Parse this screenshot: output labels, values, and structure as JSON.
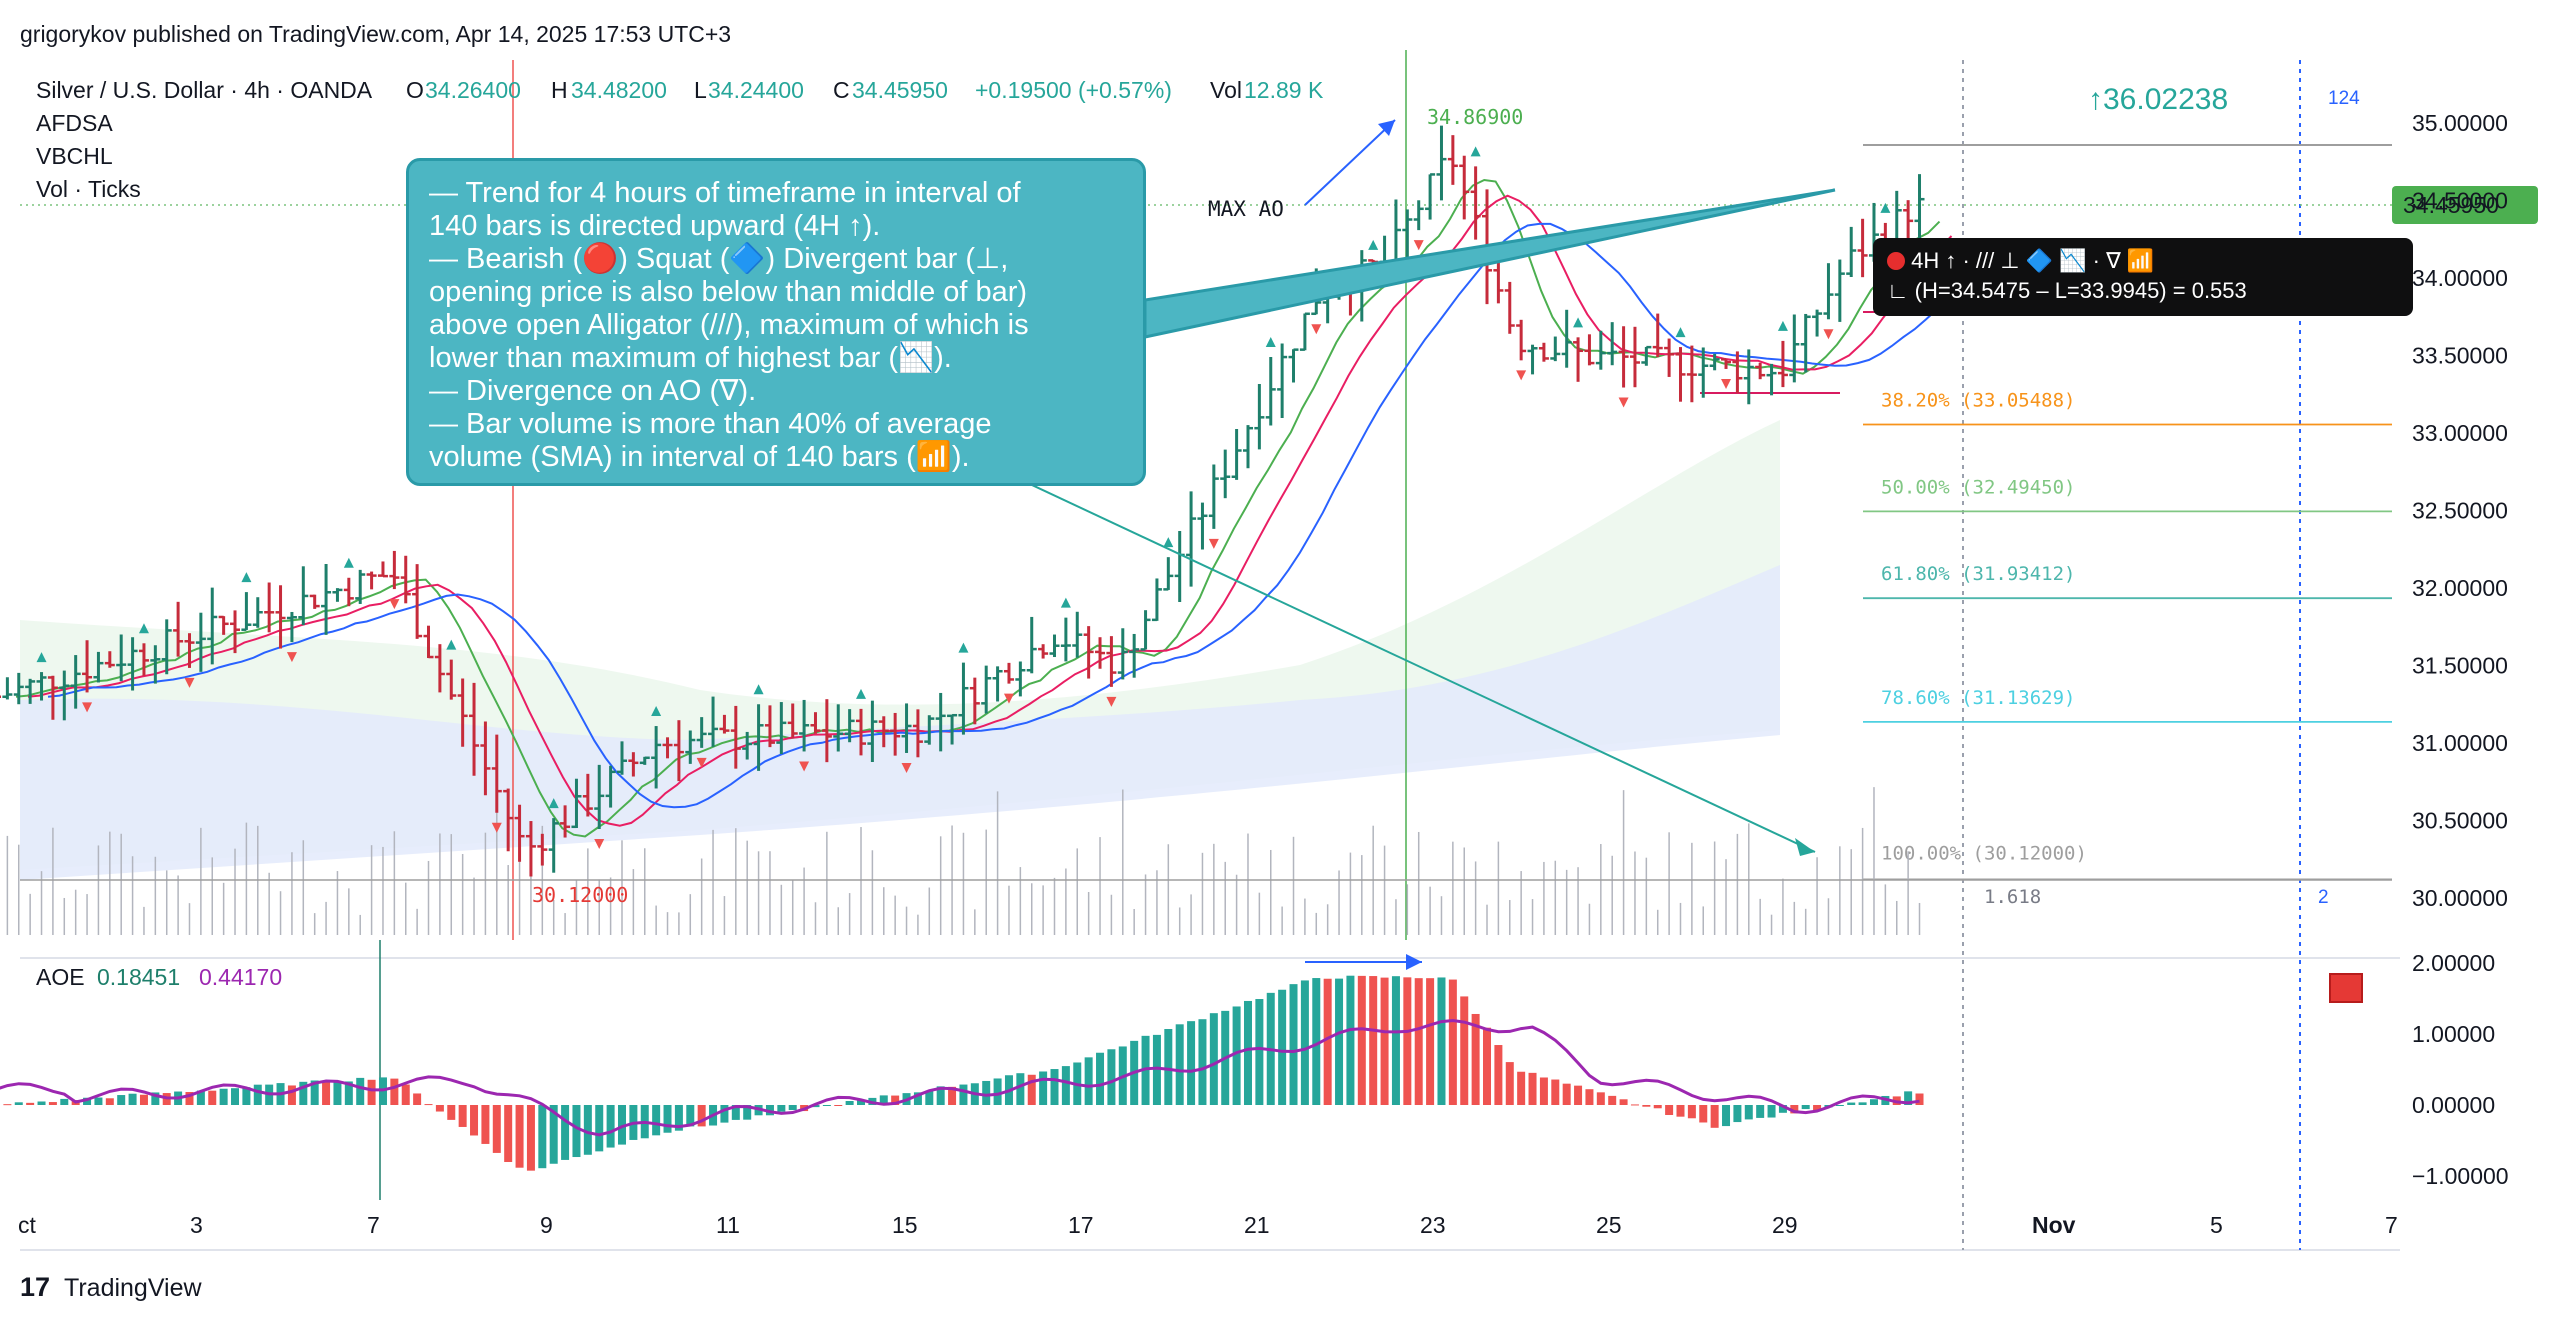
{
  "header": {
    "publisher": "grigorykov published on TradingView.com, Apr 14, 2025 17:53 UTC+3"
  },
  "legend": {
    "symbol": "Silver / U.S. Dollar · 4h · OANDA",
    "o_label": "O",
    "o_value": "34.26400",
    "h_label": "H",
    "h_value": "34.48200",
    "l_label": "L",
    "l_value": "34.24400",
    "c_label": "C",
    "c_value": "34.45950",
    "change": "+0.19500 (+0.57%)",
    "vol_label": "Vol",
    "vol_value": "12.89 K",
    "indicators": [
      "AFDSA",
      "VBCHL",
      "Vol · Ticks"
    ]
  },
  "callout": {
    "lines": [
      "— Trend for 4 hours of timeframe in interval of",
      "140 bars is directed upward (4H ↑).",
      "— Bearish (🔴) Squat (🔷) Divergent bar (⊥,",
      "opening price is also below than middle of bar)",
      "above open Alligator (///), maximum of which is",
      "lower than maximum of highest bar (📉).",
      "— Divergence on AO (∇).",
      "— Bar volume is more than 40% of average",
      "volume (SMA) in interval of 140 bars (📶)."
    ]
  },
  "tooltip": {
    "line1": "4H ↑ · /// ⊥ 🔷 📉 · ∇ 📶",
    "line2": "∟ (H=34.5475 – L=33.9945) = 0.553"
  },
  "annotations": {
    "max_ao": "MAX AO",
    "high_label": "34.86900",
    "low_label": "30.12000",
    "target": "↑36.02238",
    "bars_count": "124",
    "fib_ratio": "1.618",
    "bars_small": "2"
  },
  "fib_levels": [
    {
      "label": "38.20% (33.05488)",
      "value": 33.05488,
      "color": "#f7931a"
    },
    {
      "label": "50.00% (32.49450)",
      "value": 32.4945,
      "color": "#81c784"
    },
    {
      "label": "61.80% (31.93412)",
      "value": 31.93412,
      "color": "#4db6ac"
    },
    {
      "label": "78.60% (31.13629)",
      "value": 31.13629,
      "color": "#4dd0e1"
    },
    {
      "label": "100.00% (30.12000)",
      "value": 30.12,
      "color": "#9e9e9e"
    }
  ],
  "price_axis": {
    "ticks": [
      "35.00000",
      "34.50000",
      "34.00000",
      "33.50000",
      "33.00000",
      "32.50000",
      "32.00000",
      "31.50000",
      "31.00000",
      "30.50000",
      "30.00000"
    ],
    "current_price": "34.45950"
  },
  "oscillator": {
    "name": "AOE",
    "value1": "0.18451",
    "value2": "0.44170",
    "ticks": [
      "2.00000",
      "1.00000",
      "0.00000",
      "−1.00000"
    ]
  },
  "time_axis": [
    "ct",
    "3",
    "7",
    "9",
    "11",
    "15",
    "17",
    "21",
    "23",
    "25",
    "29",
    "Nov",
    "5",
    "7"
  ],
  "footer": {
    "brand": "TradingView"
  },
  "colors": {
    "up": "#1e7f6b",
    "down": "#c62b3b",
    "ao_up": "#26a69a",
    "ao_down": "#ef5350",
    "signal": "#9c27b0",
    "lips": "#4caf50",
    "teeth": "#e91e63",
    "jaw": "#2962ff"
  },
  "chart_data": {
    "type": "candlestick",
    "title": "Silver / U.S. Dollar · 4h · OANDA",
    "ylim": [
      29.85,
      35.35
    ],
    "high_marker": 34.869,
    "low_marker": 30.12,
    "last_close": 34.4595,
    "key_points": [
      {
        "date": "Oct 1",
        "close": 31.3
      },
      {
        "date": "Oct 7",
        "close": 32.1
      },
      {
        "date": "Oct 8",
        "close": 31.2
      },
      {
        "date": "Oct 9",
        "close": 30.3
      },
      {
        "date": "Oct 11",
        "close": 31.0
      },
      {
        "date": "Oct 15",
        "close": 31.1
      },
      {
        "date": "Oct 17",
        "close": 31.7
      },
      {
        "date": "Oct 18",
        "close": 31.5
      },
      {
        "date": "Oct 21",
        "close": 33.9
      },
      {
        "date": "Oct 22",
        "close": 34.1
      },
      {
        "date": "Oct 23",
        "close": 34.8
      },
      {
        "date": "Oct 24",
        "close": 33.6
      },
      {
        "date": "Oct 25",
        "close": 33.5
      },
      {
        "date": "Oct 28",
        "close": 33.4
      },
      {
        "date": "Oct 29",
        "close": 34.1
      },
      {
        "date": "Oct 30",
        "close": 34.4595
      }
    ],
    "ao_key_points": [
      {
        "date": "Oct 1",
        "value": 0.0
      },
      {
        "date": "Oct 7",
        "value": 0.4
      },
      {
        "date": "Oct 9",
        "value": -0.95
      },
      {
        "date": "Oct 11",
        "value": -0.4
      },
      {
        "date": "Oct 17",
        "value": 0.5
      },
      {
        "date": "Oct 21",
        "value": 1.8
      },
      {
        "date": "Oct 23",
        "value": 1.8
      },
      {
        "date": "Oct 24",
        "value": 0.5
      },
      {
        "date": "Oct 27",
        "value": -0.3
      },
      {
        "date": "Oct 30",
        "value": 0.18451
      }
    ]
  }
}
